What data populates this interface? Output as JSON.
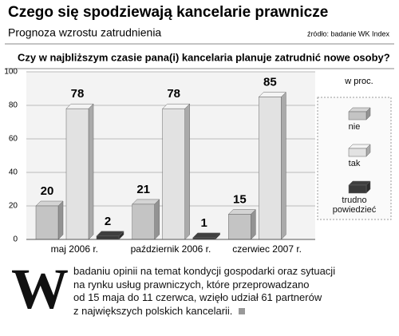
{
  "chart_data": {
    "type": "bar3d",
    "title": "Czego się spodziewają kancelarie prawnicze",
    "subtitle": "Prognoza  wzrostu zatrudnienia",
    "source": "źródło: badanie WK Index",
    "question": "Czy w najbliższym czasie pana(i) kancelaria planuje zatrudnić nowe osoby?",
    "unit_label": "w proc.",
    "categories": [
      "maj 2006 r.",
      "październik 2006 r.",
      "czerwiec 2007 r."
    ],
    "series": [
      {
        "name": "nie",
        "color": "#c4c4c4",
        "values": [
          20,
          21,
          15
        ]
      },
      {
        "name": "tak",
        "color": "#e2e2e2",
        "values": [
          78,
          78,
          85
        ]
      },
      {
        "name": "trudno powiedzieć",
        "color": "#3a3a3a",
        "values": [
          2,
          1,
          null
        ]
      }
    ],
    "ylim": [
      0,
      100
    ],
    "yticks": [
      0,
      20,
      40,
      60,
      80,
      100
    ],
    "grid": true,
    "legend": "right"
  },
  "article": {
    "drop_cap": "W",
    "lines": [
      "badaniu opinii na temat kondycji gospodarki oraz sytuacji",
      "na rynku usług prawniczych, które przeprowadzano",
      "od 15 maja do 11 czerwca, wzięło udział 61 partnerów",
      "z największych polskich kancelarii."
    ]
  }
}
